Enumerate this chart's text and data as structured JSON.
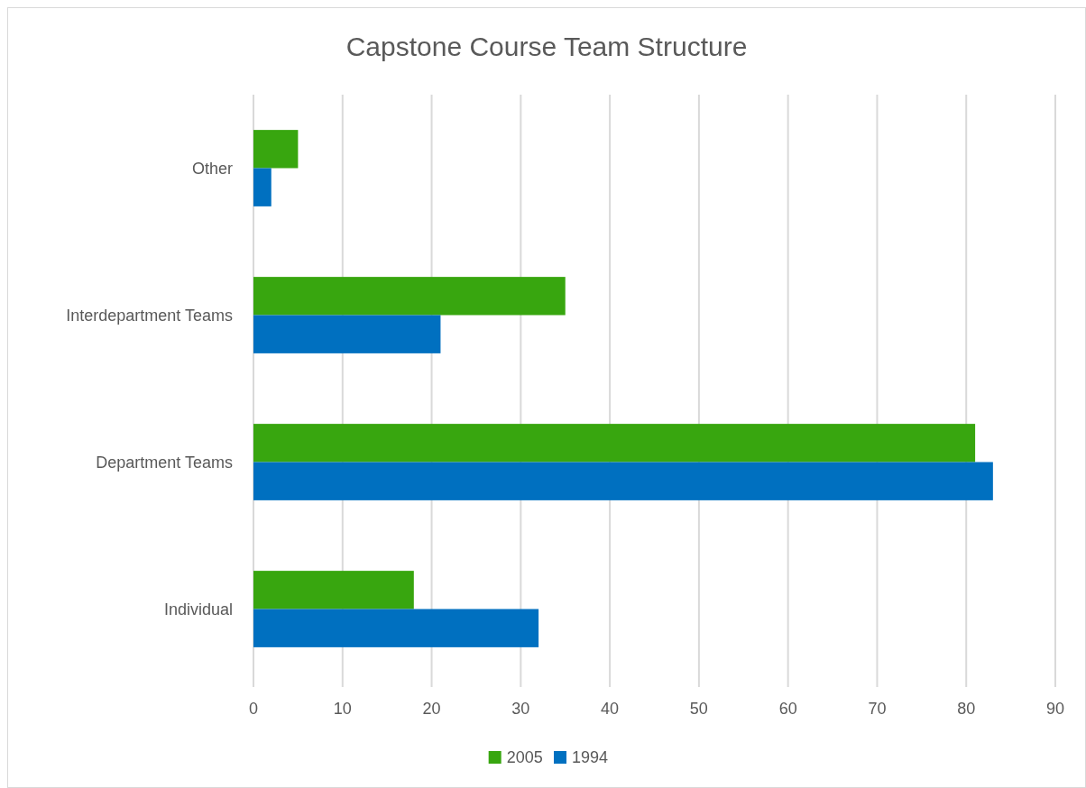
{
  "chart_data": {
    "type": "bar",
    "orientation": "horizontal",
    "title": "Capstone Course Team Structure",
    "categories": [
      "Other",
      "Interdepartment Teams",
      "Department Teams",
      "Individual"
    ],
    "series": [
      {
        "name": "2005",
        "color": "#38a60f",
        "values": [
          5,
          35,
          81,
          18
        ]
      },
      {
        "name": "1994",
        "color": "#0070c0",
        "values": [
          2,
          21,
          83,
          32
        ]
      }
    ],
    "xlim": [
      0,
      90
    ],
    "xticks": [
      0,
      10,
      20,
      30,
      40,
      50,
      60,
      70,
      80,
      90
    ],
    "grid": "x",
    "legend": "bottom"
  }
}
